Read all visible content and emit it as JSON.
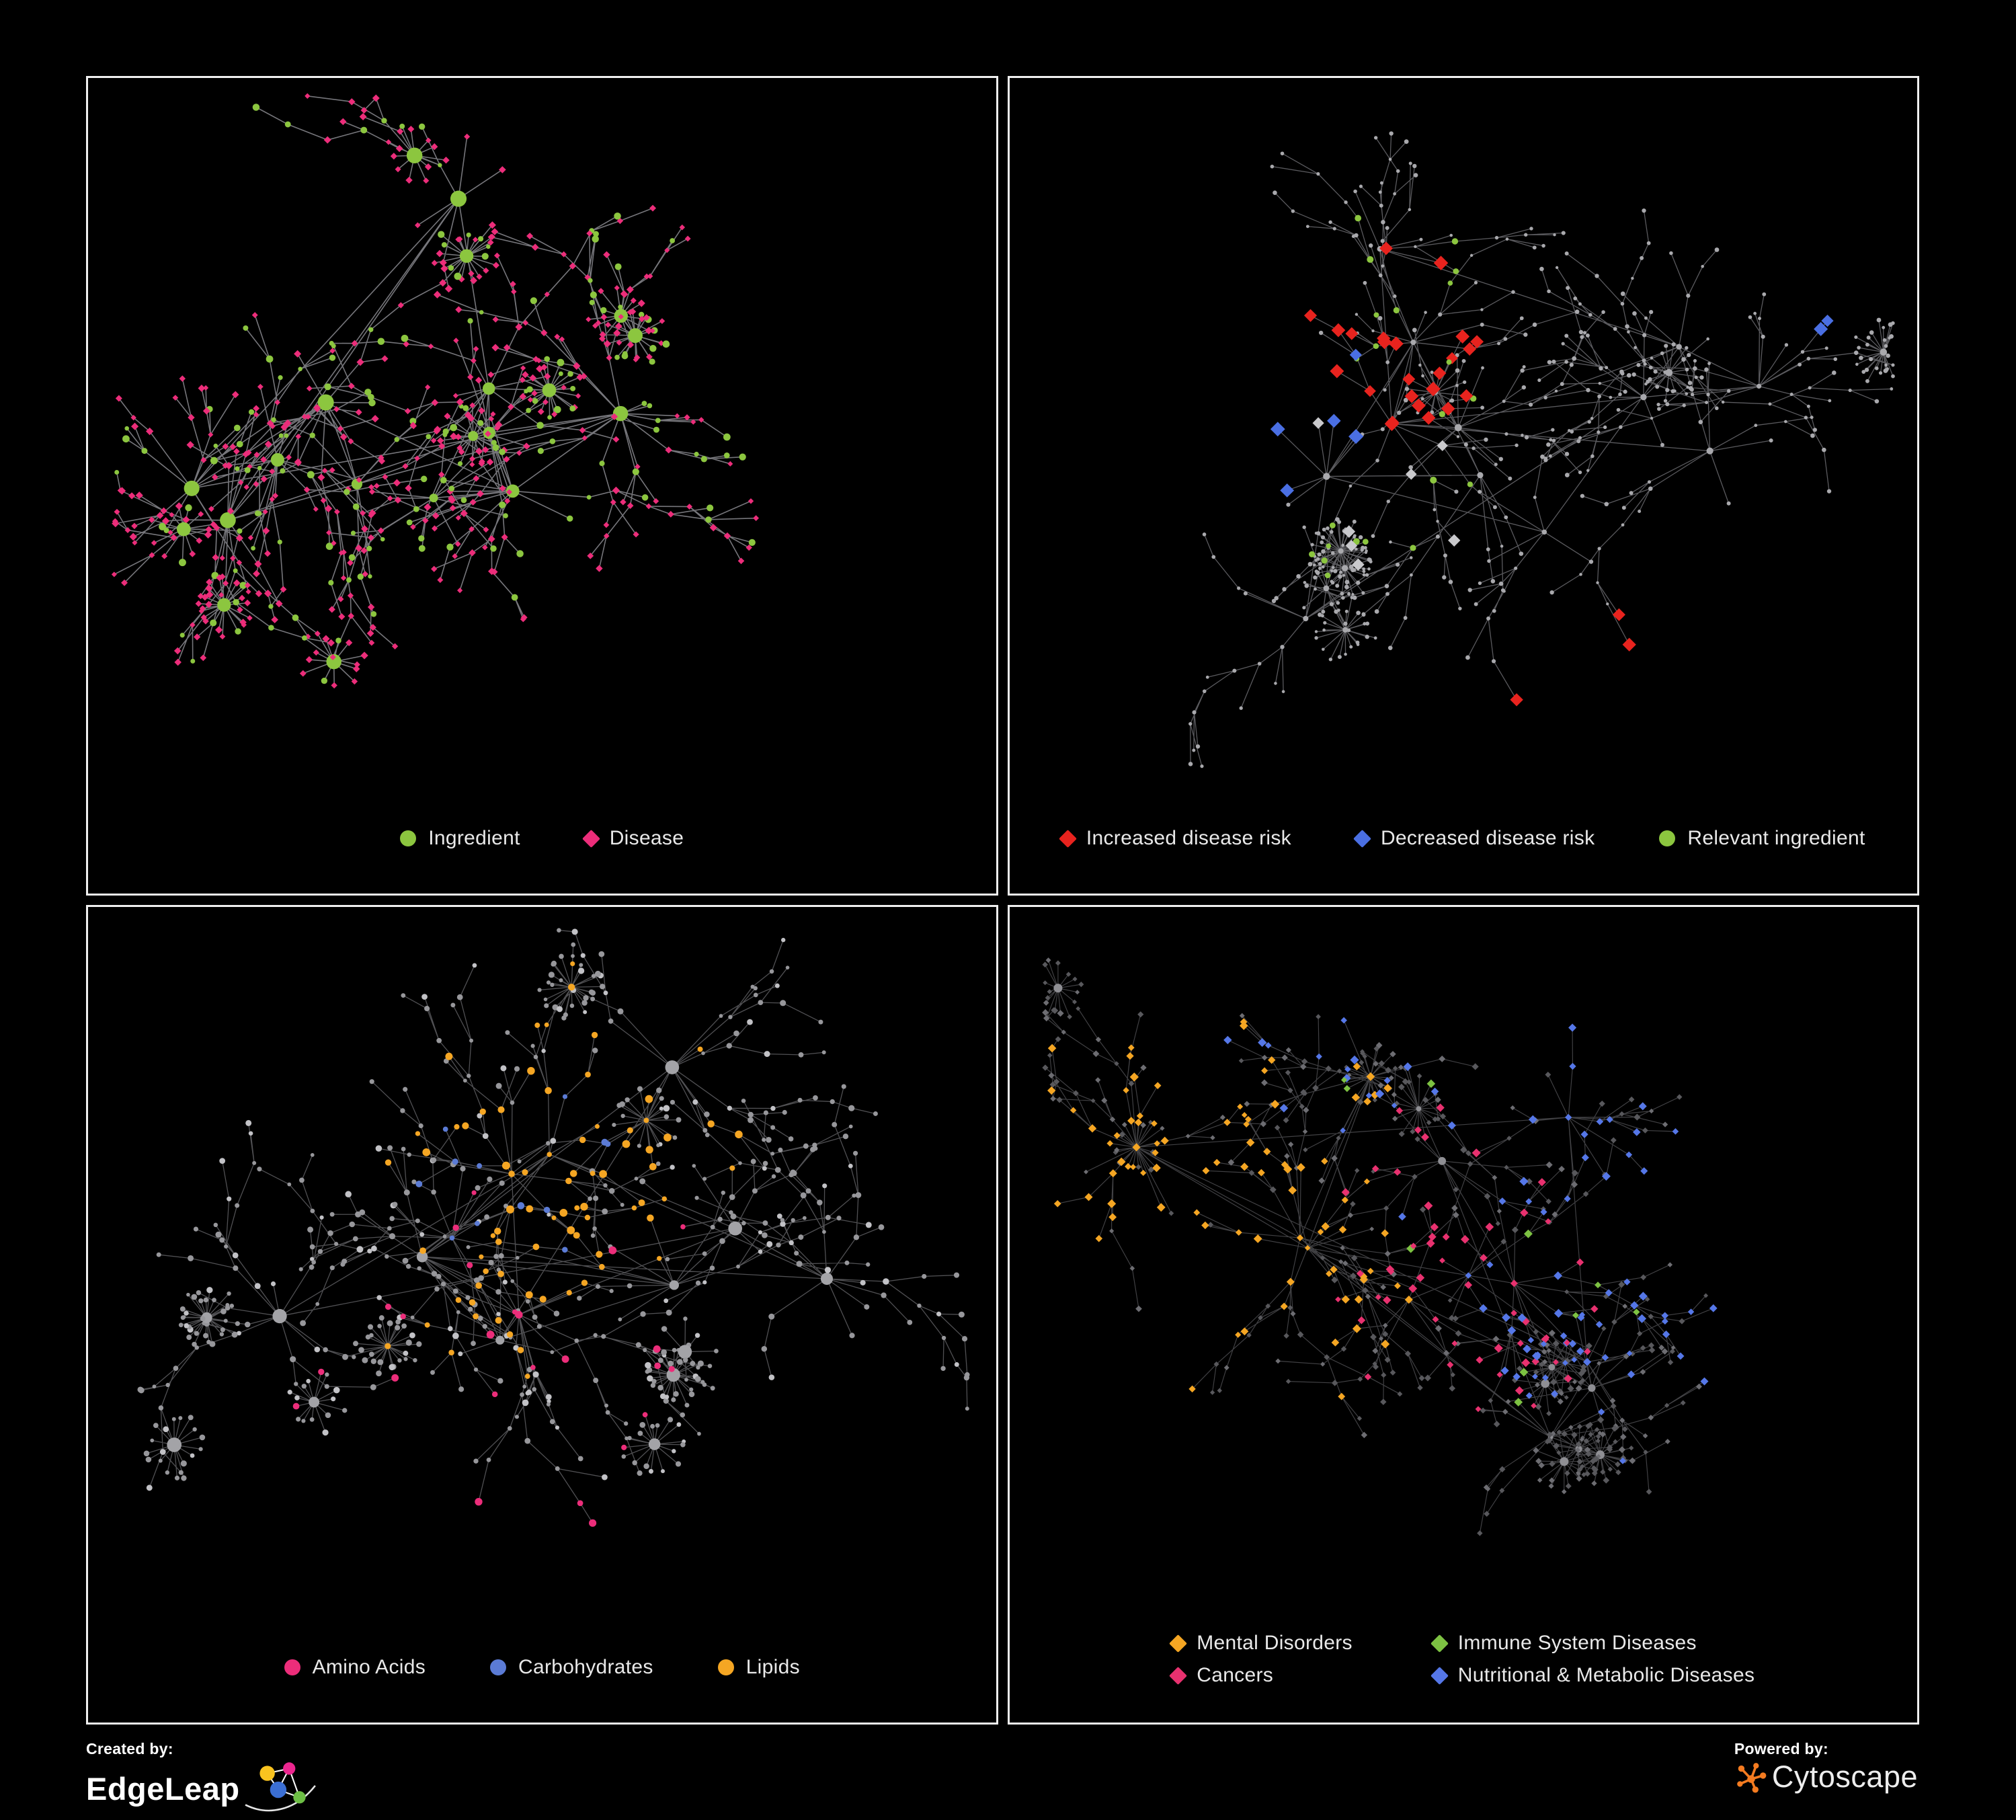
{
  "page": {
    "bg": "#000000",
    "panel_border": "#f0f0f0"
  },
  "branding": {
    "created_by": "Created by:",
    "brand_name": "EdgeLeap",
    "powered_by": "Powered by:",
    "engine_name": "Cytoscape",
    "edgeleap_colors": {
      "yellow": "#F9C31F",
      "pink": "#EC268F",
      "blue": "#3B6FD4",
      "green": "#6DBE45"
    },
    "cytoscape_orange": "#F47B20"
  },
  "panels": [
    {
      "name": "ingredient-disease",
      "legend": {
        "columns": 0,
        "items": [
          {
            "label": "Ingredient",
            "shape": "circle",
            "color": "#8CC63F"
          },
          {
            "label": "Disease",
            "shape": "diamond",
            "color": "#EC2D7A"
          }
        ]
      },
      "net": {
        "seed": 20240601,
        "hubs": 11,
        "bursts": 9,
        "edge": {
          "color": "#94949a",
          "opacity": 0.8,
          "width": 1.6
        },
        "hub_style": {
          "shape": "circle",
          "color": "#8CC63F",
          "size": [
            6,
            13
          ]
        },
        "primary": {
          "shape": "diamond",
          "color": "#EC2D7A",
          "size": [
            3.2,
            4.6
          ]
        },
        "secondary": {
          "shape": "circle",
          "color": "#8CC63F",
          "size": [
            3.2,
            5.5
          ]
        },
        "secondary_p": 0.3,
        "overlays": []
      }
    },
    {
      "name": "disease-risk",
      "legend": {
        "columns": 0,
        "items": [
          {
            "label": "Increased disease risk",
            "shape": "diamond",
            "color": "#E8231E"
          },
          {
            "label": "Decreased disease risk",
            "shape": "diamond",
            "color": "#4a6fe3"
          },
          {
            "label": "Relevant ingredient",
            "shape": "circle",
            "color": "#8CC63F"
          }
        ]
      },
      "net": {
        "seed": 77031,
        "hubs": 12,
        "bursts": 8,
        "edge": {
          "color": "#8a8a90",
          "opacity": 0.65,
          "width": 1.3
        },
        "hub_style": {
          "shape": "circle",
          "color": "#a9a9ad",
          "size": [
            3.5,
            5.5
          ]
        },
        "primary": {
          "shape": "circle",
          "color": "#a9a9ad",
          "size": [
            2.2,
            3.4
          ]
        },
        "secondary": {
          "shape": "circle",
          "color": "#a9a9ad",
          "size": [
            2.2,
            3.4
          ]
        },
        "secondary_p": 0,
        "overlays": [
          {
            "shape": "diamond",
            "color": "#E8231E",
            "count": 24,
            "size": [
              7,
              9
            ],
            "fx": 0.42,
            "fy": 0.4,
            "spread": 650
          },
          {
            "shape": "diamond",
            "color": "#E8231E",
            "count": 3,
            "size": [
              7,
              9
            ],
            "fx": 0.64,
            "fy": 0.8,
            "spread": 160
          },
          {
            "shape": "diamond",
            "color": "#4a6fe3",
            "count": 5,
            "size": [
              7,
              9
            ],
            "fx": 0.3,
            "fy": 0.45,
            "spread": 300
          },
          {
            "shape": "diamond",
            "color": "#4a6fe3",
            "count": 2,
            "size": [
              7,
              9
            ],
            "fx": 0.88,
            "fy": 0.27,
            "spread": 80
          },
          {
            "shape": "diamond",
            "color": "#c9c9cc",
            "count": 7,
            "size": [
              6.5,
              8.5
            ],
            "fx": 0.4,
            "fy": 0.5,
            "spread": 700
          },
          {
            "shape": "circle",
            "color": "#8CC63F",
            "count": 22,
            "size": [
              3.8,
              5.2
            ],
            "fx": 0.36,
            "fy": 0.42,
            "spread": 900
          }
        ]
      }
    },
    {
      "name": "nutrient-class",
      "legend": {
        "columns": 0,
        "items": [
          {
            "label": "Amino Acids",
            "shape": "circle",
            "color": "#EC2D7A"
          },
          {
            "label": "Carbohydrates",
            "shape": "circle",
            "color": "#5b7bd5"
          },
          {
            "label": "Lipids",
            "shape": "circle",
            "color": "#F5A623"
          }
        ]
      },
      "net": {
        "seed": 91155,
        "hubs": 11,
        "bursts": 9,
        "edge": {
          "color": "#85858a",
          "opacity": 0.6,
          "width": 1.3
        },
        "hub_style": {
          "shape": "circle",
          "color": "#a3a3a7",
          "size": [
            6,
            11
          ]
        },
        "primary": {
          "shape": "circle",
          "color": "#97979b",
          "size": [
            2.8,
            4.6
          ]
        },
        "secondary": {
          "shape": "circle",
          "color": "#c2c2c6",
          "size": [
            3,
            5
          ]
        },
        "secondary_p": 0.18,
        "overlays": [
          {
            "shape": "circle",
            "color": "#F5A623",
            "count": 62,
            "size": [
              3.5,
              6
            ],
            "fx": 0.52,
            "fy": 0.33,
            "spread": 520
          },
          {
            "shape": "circle",
            "color": "#F5A623",
            "count": 14,
            "size": [
              3.5,
              6
            ],
            "fx": 0.42,
            "fy": 0.62,
            "spread": 900
          },
          {
            "shape": "circle",
            "color": "#5b7bd5",
            "count": 12,
            "size": [
              3.5,
              5.5
            ],
            "fx": 0.5,
            "fy": 0.4,
            "spread": 420
          },
          {
            "shape": "circle",
            "color": "#EC2D7A",
            "count": 24,
            "size": [
              3.5,
              6
            ],
            "fx": 0.45,
            "fy": 0.62,
            "spread": 4500
          }
        ]
      }
    },
    {
      "name": "disease-category",
      "legend": {
        "columns": 2,
        "items": [
          {
            "label": "Mental Disorders",
            "shape": "diamond",
            "color": "#F5A623"
          },
          {
            "label": "Immune System Diseases",
            "shape": "diamond",
            "color": "#7DC242"
          },
          {
            "label": "Cancers",
            "shape": "diamond",
            "color": "#E8316F"
          },
          {
            "label": "Nutritional & Metabolic Diseases",
            "shape": "diamond",
            "color": "#5577E8"
          }
        ]
      },
      "net": {
        "seed": 55502,
        "hubs": 12,
        "bursts": 10,
        "edge": {
          "color": "#77777c",
          "opacity": 0.55,
          "width": 1.2
        },
        "hub_style": {
          "shape": "circle",
          "color": "#8f8f94",
          "size": [
            4,
            7
          ]
        },
        "primary": {
          "shape": "diamond",
          "color": "#58585c",
          "size": [
            2.8,
            4.2
          ]
        },
        "secondary": {
          "shape": "diamond",
          "color": "#6d6d72",
          "size": [
            2.8,
            4.2
          ]
        },
        "secondary_p": 0.3,
        "overlays": [
          {
            "shape": "diamond",
            "color": "#F5A623",
            "count": 88,
            "size": [
              3.5,
              5.5
            ],
            "fx": 0.2,
            "fy": 0.44,
            "spread": 430
          },
          {
            "shape": "diamond",
            "color": "#E8316F",
            "count": 55,
            "size": [
              3.5,
              5.5
            ],
            "fx": 0.48,
            "fy": 0.52,
            "spread": 520
          },
          {
            "shape": "diamond",
            "color": "#5577E8",
            "count": 30,
            "size": [
              3.5,
              5.5
            ],
            "fx": 0.63,
            "fy": 0.56,
            "spread": 330
          },
          {
            "shape": "diamond",
            "color": "#5577E8",
            "count": 40,
            "size": [
              3.5,
              5.5
            ],
            "fx": 0.82,
            "fy": 0.28,
            "spread": 900
          },
          {
            "shape": "diamond",
            "color": "#5577E8",
            "count": 14,
            "size": [
              3.5,
              5.5
            ],
            "fx": 0.4,
            "fy": 0.1,
            "spread": 800
          },
          {
            "shape": "diamond",
            "color": "#7DC242",
            "count": 10,
            "size": [
              3.5,
              5.5
            ],
            "fx": 0.5,
            "fy": 0.5,
            "spread": 4000
          }
        ]
      }
    }
  ]
}
